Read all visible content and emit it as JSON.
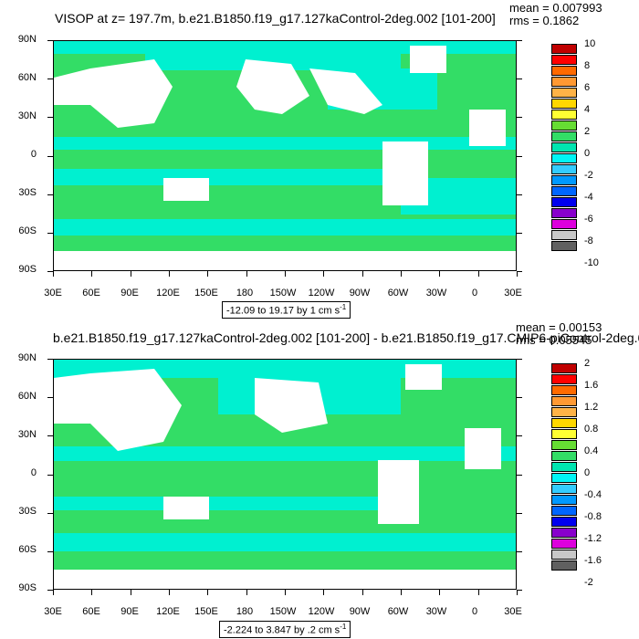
{
  "panel1": {
    "title": "VISOP at z= 197.7m, b.e21.B1850.f19_g17.127kaControl-2deg.002 [101-200]",
    "mean": "mean = 0.007993",
    "rms": "rms = 0.1862",
    "range_text": "-12.09 to 19.17 by 1 cm s",
    "range_exp": "-1",
    "colorbar_labels": [
      "10",
      "8",
      "6",
      "4",
      "2",
      "0",
      "-2",
      "-4",
      "-6",
      "-8",
      "-10"
    ],
    "colorbar_colors": [
      "#c00000",
      "#ff0000",
      "#ff6a00",
      "#ff9933",
      "#ffb347",
      "#ffd700",
      "#ffff33",
      "#66dd33",
      "#33dd66",
      "#00e5b0",
      "#00f5f5",
      "#33ccff",
      "#0099ff",
      "#0066ff",
      "#0000ee",
      "#8800cc",
      "#dd00dd",
      "#c8c8c8",
      "#606060"
    ]
  },
  "panel2": {
    "title": "b.e21.B1850.f19_g17.127kaControl-2deg.002 [101-200] - b.e21.B1850.f19_g17.CMIP6-piControl-2deg.0",
    "mean": "mean = 0.00153",
    "rms": "rms = 0.05545",
    "range_text": "-2.224 to 3.847 by .2 cm s",
    "range_exp": "-1",
    "colorbar_labels": [
      "2",
      "1.6",
      "1.2",
      "0.8",
      "0.4",
      "0",
      "-0.4",
      "-0.8",
      "-1.2",
      "-1.6",
      "-2"
    ],
    "colorbar_colors": [
      "#c00000",
      "#ff0000",
      "#ff6a00",
      "#ff9933",
      "#ffb347",
      "#ffd700",
      "#ffff33",
      "#66dd33",
      "#33dd66",
      "#00e5b0",
      "#00f5f5",
      "#33ccff",
      "#0099ff",
      "#0066ff",
      "#0000ee",
      "#8800cc",
      "#dd00dd",
      "#c8c8c8",
      "#606060"
    ]
  },
  "lat_labels": [
    "90N",
    "60N",
    "30N",
    "0",
    "30S",
    "60S",
    "90S"
  ],
  "lon_labels": [
    "30E",
    "60E",
    "90E",
    "120E",
    "150E",
    "180",
    "150W",
    "120W",
    "90W",
    "60W",
    "30W",
    "0",
    "30E"
  ],
  "colors": {
    "ocean_green": "#33dd66",
    "ocean_cyan": "#00f0d0",
    "land": "#ffffff"
  }
}
